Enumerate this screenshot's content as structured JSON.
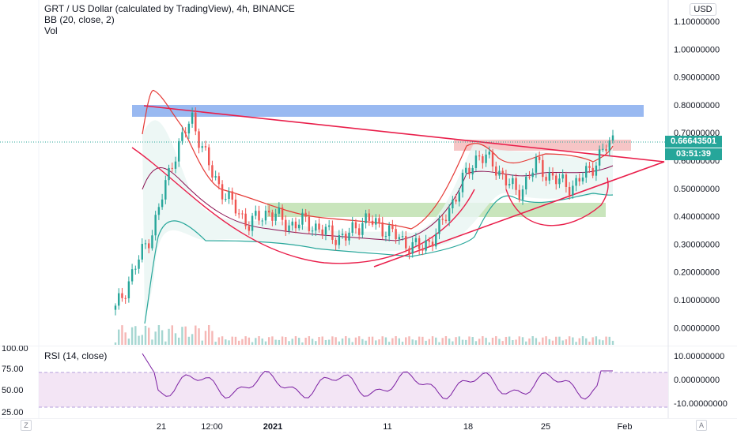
{
  "header": {
    "title": "GRT / US Dollar (calculated by TradingView), 4h, BINANCE",
    "indicator_bb": "BB (20, close, 2)",
    "indicator_vol": "Vol",
    "currency_button": "USD"
  },
  "price_axis": {
    "ticks": [
      "1.10000000",
      "1.00000000",
      "0.90000000",
      "0.80000000",
      "0.70000000",
      "0.60000000",
      "0.50000000",
      "0.40000000",
      "0.30000000",
      "0.20000000",
      "0.10000000",
      "0.00000000"
    ],
    "last_price": "0.66643501",
    "countdown": "03:51:39",
    "colors": {
      "last_price_tag": "#26a69a",
      "countdown_tag": "#26a69a"
    }
  },
  "rsi": {
    "label": "RSI (14, close)",
    "left_ticks": [
      "100.00",
      "75.00",
      "50.00",
      "25.00"
    ],
    "right_ticks": [
      "10.00000000",
      "0.00000000",
      "-10.00000000"
    ],
    "colors": {
      "line": "#7b1fa2",
      "band": "#f3e5f5"
    }
  },
  "time_axis": {
    "labels": [
      "21",
      "12:00",
      "2021",
      "11",
      "18",
      "25",
      "Feb"
    ],
    "zoom_button": "A",
    "settings_button": "Z"
  },
  "drawings": {
    "colors": {
      "trendline": "#e91e4a",
      "resistance_zone": "#7fa7ee",
      "support_zone": "#b7dca5",
      "top_zone": "#f4b6b8",
      "bb_fill": "#e8f5f3"
    }
  },
  "chart_data": {
    "type": "line",
    "title": "GRT / US Dollar (calculated by TradingView), 4h, BINANCE",
    "xlabel": "",
    "ylabel": "",
    "ylim": [
      0,
      1.1
    ],
    "x": [
      "2020-12-17",
      "2020-12-18",
      "2020-12-19",
      "2020-12-20",
      "2020-12-21",
      "2020-12-22",
      "2020-12-24",
      "2020-12-26",
      "2020-12-28",
      "2020-12-30",
      "2021-01-01",
      "2021-01-03",
      "2021-01-05",
      "2021-01-07",
      "2021-01-09",
      "2021-01-11",
      "2021-01-13",
      "2021-01-15",
      "2021-01-17",
      "2021-01-18",
      "2021-01-20",
      "2021-01-22",
      "2021-01-24",
      "2021-01-26",
      "2021-01-28",
      "2021-01-29",
      "2021-01-30"
    ],
    "series": [
      {
        "values": [
          0.05,
          0.2,
          0.35,
          0.6,
          0.75,
          0.55,
          0.44,
          0.36,
          0.41,
          0.36,
          0.37,
          0.33,
          0.31,
          0.38,
          0.35,
          0.3,
          0.27,
          0.35,
          0.5,
          0.62,
          0.56,
          0.47,
          0.58,
          0.52,
          0.5,
          0.58,
          0.67
        ]
      }
    ],
    "annotations": [
      "resistance zone ~0.76-0.80",
      "support zone ~0.39-0.44",
      "top zone ~0.63-0.68",
      "descending trendline",
      "ascending trendline",
      "cup curve"
    ]
  }
}
